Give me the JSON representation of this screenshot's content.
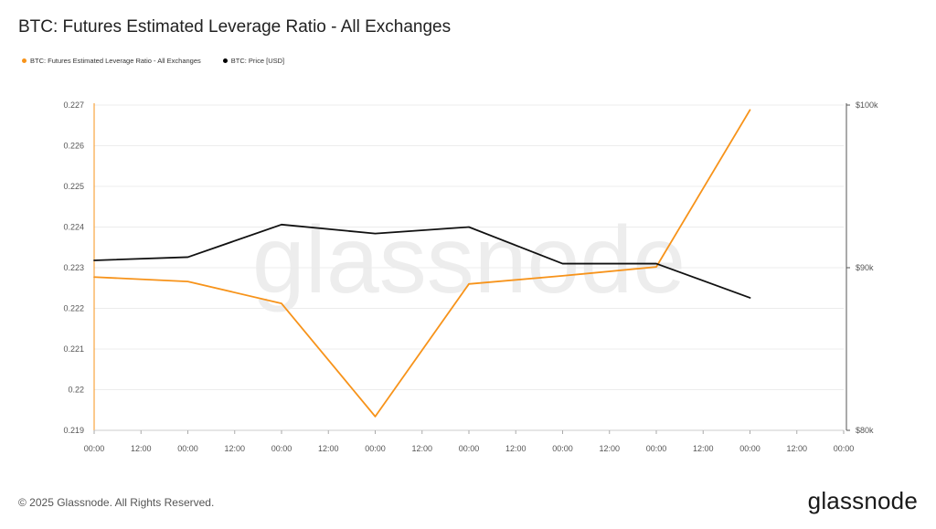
{
  "title": "BTC: Futures Estimated Leverage Ratio - All Exchanges",
  "legend": [
    {
      "label": "BTC: Futures Estimated Leverage Ratio - All Exchanges",
      "color": "#f7931a"
    },
    {
      "label": "BTC: Price [USD]",
      "color": "#000000"
    }
  ],
  "watermark": "glassnode",
  "footer": "© 2025 Glassnode. All Rights Reserved.",
  "brand": "glassnode",
  "chart_data": {
    "type": "line",
    "title": "BTC: Futures Estimated Leverage Ratio - All Exchanges",
    "x_ticks": [
      "00:00",
      "12:00",
      "00:00",
      "12:00",
      "00:00",
      "12:00",
      "00:00",
      "12:00",
      "00:00",
      "12:00",
      "00:00",
      "12:00",
      "00:00",
      "12:00",
      "00:00",
      "12:00",
      "00:00"
    ],
    "x": [
      0,
      2,
      4,
      6,
      8,
      10,
      12,
      14
    ],
    "y_left": {
      "ticks": [
        "0.219",
        "0.22",
        "0.221",
        "0.222",
        "0.223",
        "0.224",
        "0.225",
        "0.226",
        "0.227"
      ],
      "ylim": [
        0.219,
        0.227
      ]
    },
    "y_right": {
      "ticks": [
        "$80k",
        "$90k",
        "$100k"
      ],
      "ylim": [
        80000,
        100000
      ]
    },
    "grid": true,
    "legend_position": "top-left",
    "series": [
      {
        "name": "BTC: Futures Estimated Leverage Ratio - All Exchanges",
        "axis": "left",
        "color": "#f7931a",
        "values": [
          0.22277,
          0.22266,
          0.22212,
          0.21934,
          0.2226,
          0.2228,
          0.22302,
          0.22688
        ]
      },
      {
        "name": "BTC: Price [USD]",
        "axis": "right",
        "color": "#111111",
        "values": [
          90450,
          90650,
          92650,
          92100,
          92500,
          90250,
          90250,
          88150
        ]
      }
    ]
  }
}
